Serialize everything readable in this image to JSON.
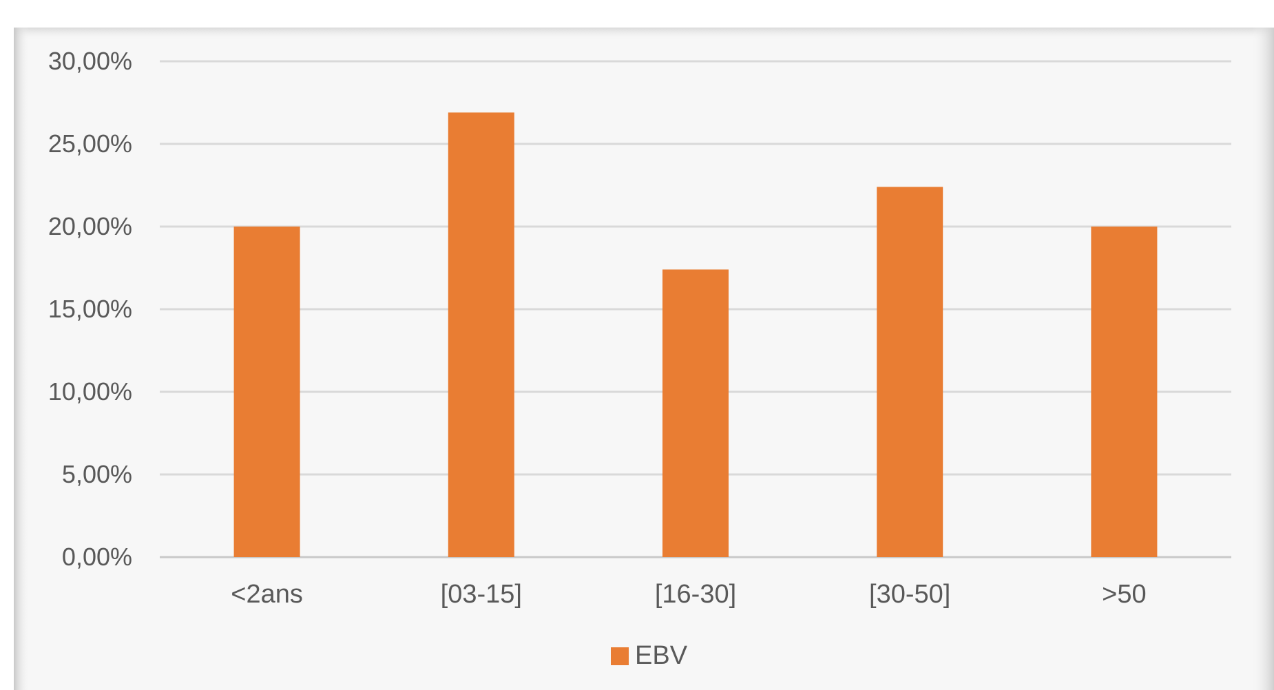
{
  "chart_data": {
    "type": "bar",
    "categories": [
      "<2ans",
      "[03-15]",
      "[16-30]",
      "[30-50]",
      ">50"
    ],
    "series": [
      {
        "name": "EBV",
        "values": [
          20.0,
          26.9,
          17.4,
          22.4,
          20.0
        ],
        "color": "#E97D33"
      }
    ],
    "y_ticks": [
      "0,00%",
      "5,00%",
      "10,00%",
      "15,00%",
      "20,00%",
      "25,00%",
      "30,00%"
    ],
    "ylim": [
      0,
      30
    ],
    "grid": true,
    "legend_position": "bottom"
  }
}
